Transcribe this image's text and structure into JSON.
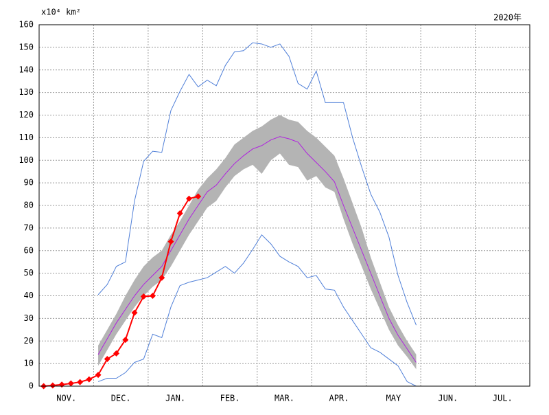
{
  "chart_data": {
    "type": "line",
    "y_unit_label": "x10⁴ km²",
    "year_label": "2020年",
    "xlim": [
      0,
      54
    ],
    "xticks": [
      {
        "value": 3,
        "label": "NOV."
      },
      {
        "value": 9,
        "label": "DEC."
      },
      {
        "value": 15,
        "label": "JAN."
      },
      {
        "value": 21,
        "label": "FEB."
      },
      {
        "value": 27,
        "label": "MAR."
      },
      {
        "value": 33,
        "label": "APR."
      },
      {
        "value": 39,
        "label": "MAY"
      },
      {
        "value": 45,
        "label": "JUN."
      },
      {
        "value": 51,
        "label": "JUL."
      }
    ],
    "xgrid": [
      6,
      12,
      18,
      24,
      30,
      36,
      42,
      48
    ],
    "ylim": [
      0,
      160
    ],
    "yticks": [
      0,
      10,
      20,
      30,
      40,
      50,
      60,
      70,
      80,
      90,
      100,
      110,
      120,
      130,
      140,
      150,
      160
    ],
    "grid": true,
    "band": {
      "color": "#b4b4b4",
      "x": [
        6.5,
        7.5,
        8.5,
        9.5,
        10.5,
        11.5,
        12.5,
        13.5,
        14.5,
        15.5,
        16.5,
        17.5,
        18.5,
        19.5,
        20.5,
        21.5,
        22.5,
        23.5,
        24.5,
        25.5,
        26.5,
        27.5,
        28.5,
        29.5,
        30.5,
        31.5,
        32.5,
        33.5,
        34.5,
        35.5,
        36.5,
        37.5,
        38.5,
        39.5,
        40.5,
        41.5
      ],
      "upper": [
        18,
        25,
        32,
        40,
        47,
        53,
        57,
        60,
        67,
        73,
        80,
        87,
        92,
        96,
        101,
        107,
        110,
        113,
        115,
        118,
        120,
        118,
        117,
        113,
        110,
        106,
        102,
        92,
        81,
        70,
        57,
        46,
        35,
        27,
        20,
        14
      ],
      "lower": [
        9,
        16,
        23,
        29,
        35,
        40,
        44,
        47,
        53,
        60,
        67,
        73,
        79,
        82,
        88,
        93,
        96,
        98,
        94,
        100,
        103,
        98,
        97,
        91,
        93,
        88,
        86,
        74,
        63,
        53,
        43,
        34,
        25,
        18,
        13,
        7.5
      ]
    },
    "series": [
      {
        "color": "#4f7fd8",
        "marker": false,
        "width": 1,
        "x": [
          6.5,
          7.5,
          8.5,
          9.5,
          10.5,
          11.5,
          12.5,
          13.5,
          14.5,
          15.5,
          16.5,
          17.5,
          18.5,
          19.5,
          20.5,
          21.5,
          22.5,
          23.5,
          24.5,
          25.5,
          26.5,
          27.5,
          28.5,
          29.5,
          30.5,
          31.5,
          32.5,
          33.5,
          34.5,
          35.5,
          36.5,
          37.5,
          38.5,
          39.5,
          40.5,
          41.5
        ],
        "values": [
          40.5,
          45,
          53,
          55,
          82,
          99.5,
          104,
          103.5,
          122,
          130.5,
          138,
          132.5,
          135.5,
          133,
          142,
          148,
          148.5,
          152,
          151.5,
          150,
          151.5,
          146,
          134,
          131.5,
          139.5,
          125.5,
          125.5,
          125.5,
          110,
          97,
          85,
          77,
          66,
          49,
          37,
          27
        ]
      },
      {
        "color": "#4f7fd8",
        "marker": false,
        "width": 1,
        "x": [
          6.5,
          7.5,
          8.5,
          9.5,
          10.5,
          11.5,
          12.5,
          13.5,
          14.5,
          15.5,
          16.5,
          17.5,
          18.5,
          19.5,
          20.5,
          21.5,
          22.5,
          23.5,
          24.5,
          25.5,
          26.5,
          27.5,
          28.5,
          29.5,
          30.5,
          31.5,
          32.5,
          33.5,
          34.5,
          35.5,
          36.5,
          37.5,
          38.5,
          39.5,
          40.5,
          41.5
        ],
        "values": [
          2,
          3.5,
          3.5,
          6,
          10.5,
          12,
          23,
          21.5,
          35,
          44.5,
          46,
          47,
          48,
          50.5,
          53,
          50,
          54.5,
          60.5,
          67,
          63,
          57.5,
          55,
          53,
          48,
          49,
          43,
          42.5,
          35,
          29,
          23,
          17,
          15,
          12,
          9,
          2,
          0
        ]
      },
      {
        "color": "#b020e0",
        "marker": false,
        "width": 1,
        "x": [
          6.5,
          7.5,
          8.5,
          9.5,
          10.5,
          11.5,
          12.5,
          13.5,
          14.5,
          15.5,
          16.5,
          17.5,
          18.5,
          19.5,
          20.5,
          21.5,
          22.5,
          23.5,
          24.5,
          25.5,
          26.5,
          27.5,
          28.5,
          29.5,
          30.5,
          31.5,
          32.5,
          33.5,
          34.5,
          35.5,
          36.5,
          37.5,
          38.5,
          39.5,
          40.5,
          41.5
        ],
        "values": [
          14,
          21,
          28,
          34,
          40,
          45,
          49,
          53,
          60,
          67,
          74,
          80,
          86,
          89,
          94,
          98.5,
          102,
          105,
          106.5,
          109,
          110.5,
          109.5,
          108,
          103,
          99,
          95,
          90.5,
          80,
          70,
          60,
          50,
          40,
          30,
          22.5,
          16.5,
          10.5
        ]
      },
      {
        "color": "#ff0000",
        "marker": true,
        "width": 2,
        "x": [
          0.5,
          1.5,
          2.5,
          3.5,
          4.5,
          5.5,
          6.5,
          7.5,
          8.5,
          9.5,
          10.5,
          11.5,
          12.5,
          13.5,
          14.5,
          15.5,
          16.5,
          17.5
        ],
        "values": [
          0,
          0.3,
          0.7,
          1.2,
          1.8,
          3,
          5,
          12,
          14.5,
          20.5,
          32.5,
          39.7,
          40,
          48,
          64,
          76.5,
          83,
          84
        ]
      }
    ]
  }
}
